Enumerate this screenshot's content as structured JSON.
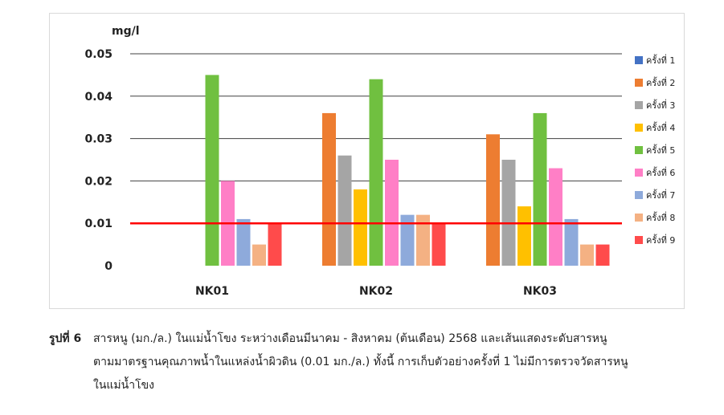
{
  "chart_data": {
    "type": "bar",
    "unit_label": "mg/l",
    "categories": [
      "NK01",
      "NK02",
      "NK03"
    ],
    "ylim": [
      0,
      0.05
    ],
    "yticks": [
      "0",
      "0.01",
      "0.02",
      "0.03",
      "0.04",
      "0.05"
    ],
    "grid": true,
    "legend_position": "right",
    "series": [
      {
        "name": "ครั้งที่ 1",
        "color": "#4472c4",
        "values": [
          0,
          0,
          0
        ]
      },
      {
        "name": "ครั้งที่ 2",
        "color": "#ed7d31",
        "values": [
          0,
          0.036,
          0.031
        ]
      },
      {
        "name": "ครั้งที่ 3",
        "color": "#a5a5a5",
        "values": [
          0,
          0.026,
          0.025
        ]
      },
      {
        "name": "ครั้งที่ 4",
        "color": "#ffc000",
        "values": [
          0,
          0.018,
          0.014
        ]
      },
      {
        "name": "ครั้งที่ 5",
        "color": "#70c040",
        "values": [
          0.045,
          0.044,
          0.036
        ]
      },
      {
        "name": "ครั้งที่ 6",
        "color": "#ff7fc6",
        "values": [
          0.02,
          0.025,
          0.023
        ]
      },
      {
        "name": "ครั้งที่ 7",
        "color": "#8eaadb",
        "values": [
          0.011,
          0.012,
          0.011
        ]
      },
      {
        "name": "ครั้งที่ 8",
        "color": "#f4b183",
        "values": [
          0.005,
          0.012,
          0.005
        ]
      },
      {
        "name": "ครั้งที่ 9",
        "color": "#ff4b4b",
        "values": [
          0.01,
          0.01,
          0.005
        ]
      }
    ],
    "reference_line": {
      "value": 0.01,
      "color": "#ff0000"
    }
  },
  "caption": {
    "label": "รูปที่ 6",
    "line1": "สารหนู (มก./ล.) ในแม่น้ำโขง ระหว่างเดือนมีนาคม - สิงหาคม (ต้นเดือน) 2568 และเส้นแสดงระดับสารหนู",
    "line2": "ตามมาตรฐานคุณภาพน้ำในแหล่งน้ำผิวดิน (0.01 มก./ล.) ทั้งนี้ การเก็บตัวอย่างครั้งที่ 1 ไม่มีการตรวจวัดสารหนู",
    "line3": "ในแม่น้ำโขง"
  }
}
